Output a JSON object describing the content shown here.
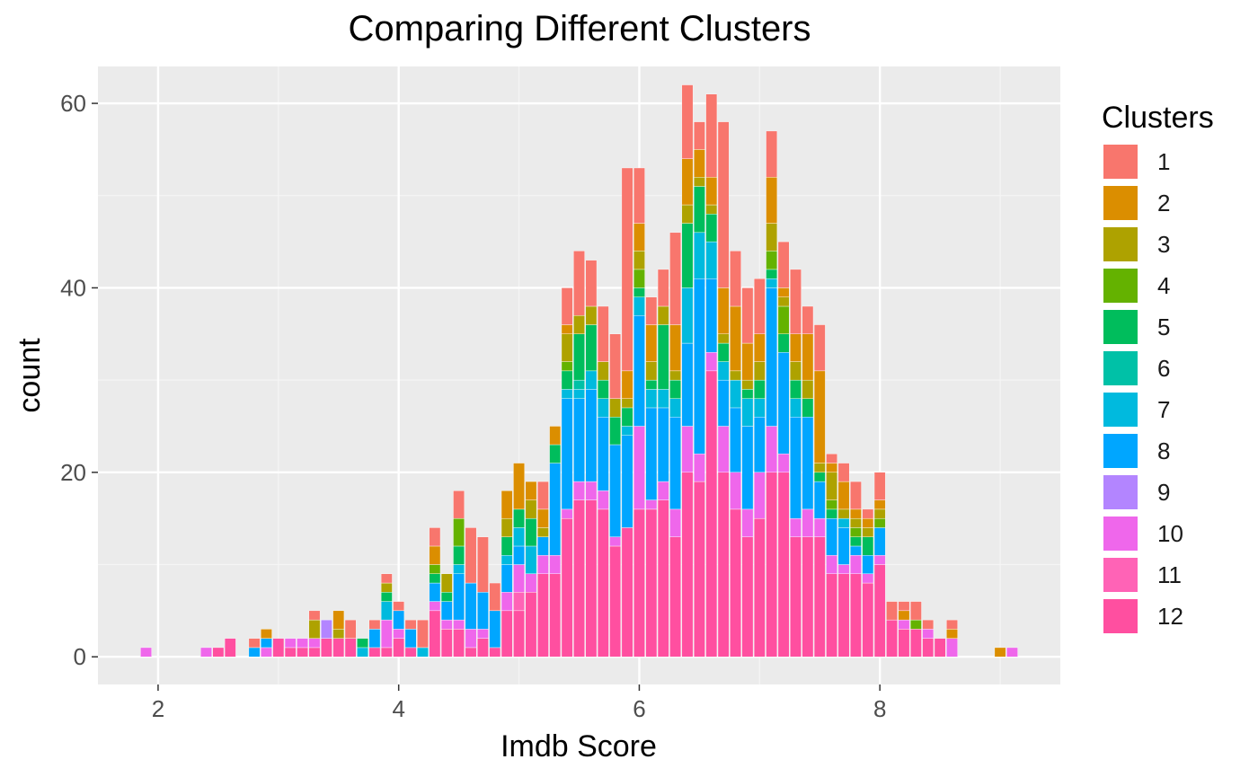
{
  "chart_data": {
    "type": "bar",
    "stacked": true,
    "title": "Comparing Different Clusters",
    "xlabel": "Imdb Score",
    "ylabel": "count",
    "xlim": [
      1.5,
      9.5
    ],
    "ylim": [
      -3,
      64
    ],
    "x_ticks": [
      2,
      4,
      6,
      8
    ],
    "y_ticks": [
      0,
      20,
      40,
      60
    ],
    "grid": true,
    "legend_position": "right",
    "legend_title": "Clusters",
    "clusters": [
      "1",
      "2",
      "3",
      "4",
      "5",
      "6",
      "7",
      "8",
      "9",
      "10",
      "11",
      "12"
    ],
    "colors": [
      "#F8766D",
      "#DB8E00",
      "#AEA200",
      "#64B200",
      "#00BD5C",
      "#00C1A7",
      "#00BADE",
      "#00A6FF",
      "#B385FF",
      "#EF67EB",
      "#FF63B6",
      "#FF4FA0"
    ],
    "bars": [
      {
        "x": 1.9,
        "counts": {
          "10": 1
        }
      },
      {
        "x": 2.4,
        "counts": {
          "10": 1
        }
      },
      {
        "x": 2.5,
        "counts": {
          "12": 1
        }
      },
      {
        "x": 2.6,
        "counts": {
          "12": 2
        }
      },
      {
        "x": 2.8,
        "counts": {
          "8": 1,
          "1": 1
        }
      },
      {
        "x": 2.9,
        "counts": {
          "10": 1,
          "8": 1,
          "2": 1
        }
      },
      {
        "x": 3.0,
        "counts": {
          "12": 2
        }
      },
      {
        "x": 3.1,
        "counts": {
          "10": 1,
          "12": 1
        }
      },
      {
        "x": 3.2,
        "counts": {
          "12": 1,
          "10": 1
        }
      },
      {
        "x": 3.3,
        "counts": {
          "12": 1,
          "10": 1,
          "3": 2,
          "1": 1
        }
      },
      {
        "x": 3.4,
        "counts": {
          "12": 2,
          "9": 2
        }
      },
      {
        "x": 3.5,
        "counts": {
          "12": 2,
          "3": 1,
          "2": 2
        }
      },
      {
        "x": 3.6,
        "counts": {
          "12": 2,
          "1": 2
        }
      },
      {
        "x": 3.7,
        "counts": {
          "7": 1,
          "5": 1
        }
      },
      {
        "x": 3.8,
        "counts": {
          "12": 1,
          "8": 2,
          "1": 1
        }
      },
      {
        "x": 3.9,
        "counts": {
          "12": 1,
          "10": 3,
          "7": 2,
          "5": 1,
          "3": 1,
          "1": 1
        }
      },
      {
        "x": 4.0,
        "counts": {
          "12": 2,
          "10": 1,
          "8": 2,
          "1": 1
        }
      },
      {
        "x": 4.1,
        "counts": {
          "12": 1,
          "8": 2,
          "1": 1
        }
      },
      {
        "x": 4.2,
        "counts": {
          "7": 1,
          "1": 3
        }
      },
      {
        "x": 4.3,
        "counts": {
          "12": 5,
          "10": 1,
          "8": 2,
          "5": 1,
          "4": 1,
          "2": 2,
          "1": 2
        }
      },
      {
        "x": 4.4,
        "counts": {
          "12": 3,
          "10": 1,
          "8": 2,
          "5": 1,
          "3": 2
        }
      },
      {
        "x": 4.5,
        "counts": {
          "12": 3,
          "10": 1,
          "8": 5,
          "7": 1,
          "5": 2,
          "4": 3,
          "1": 3
        }
      },
      {
        "x": 4.6,
        "counts": {
          "12": 1,
          "10": 2,
          "8": 5,
          "1": 6
        }
      },
      {
        "x": 4.7,
        "counts": {
          "12": 2,
          "10": 1,
          "8": 4,
          "1": 6
        }
      },
      {
        "x": 4.8,
        "counts": {
          "12": 1,
          "8": 4,
          "1": 3
        }
      },
      {
        "x": 4.9,
        "counts": {
          "12": 5,
          "10": 2,
          "8": 3,
          "7": 1,
          "5": 2,
          "3": 2,
          "2": 3
        }
      },
      {
        "x": 5.0,
        "counts": {
          "12": 5,
          "11": 2,
          "10": 3,
          "8": 2,
          "7": 2,
          "5": 2,
          "2": 5
        }
      },
      {
        "x": 5.1,
        "counts": {
          "12": 7,
          "10": 2,
          "7": 3,
          "5": 3,
          "3": 2,
          "2": 2
        }
      },
      {
        "x": 5.2,
        "counts": {
          "12": 9,
          "10": 2,
          "8": 2,
          "3": 1,
          "2": 2,
          "1": 3
        }
      },
      {
        "x": 5.3,
        "counts": {
          "12": 9,
          "10": 2,
          "8": 10,
          "5": 2,
          "2": 2
        }
      },
      {
        "x": 5.4,
        "counts": {
          "12": 15,
          "10": 1,
          "8": 12,
          "7": 1,
          "5": 2,
          "4": 1,
          "3": 3,
          "2": 1,
          "1": 4
        }
      },
      {
        "x": 5.5,
        "counts": {
          "12": 17,
          "10": 2,
          "8": 9,
          "7": 1,
          "6": 1,
          "5": 5,
          "3": 2,
          "1": 7
        }
      },
      {
        "x": 5.6,
        "counts": {
          "12": 17,
          "10": 2,
          "8": 10,
          "7": 2,
          "5": 5,
          "3": 2,
          "1": 5
        }
      },
      {
        "x": 5.7,
        "counts": {
          "12": 16,
          "10": 2,
          "8": 8,
          "7": 2,
          "5": 2,
          "3": 2,
          "1": 6
        }
      },
      {
        "x": 5.8,
        "counts": {
          "12": 12,
          "10": 1,
          "8": 10,
          "5": 3,
          "3": 2,
          "1": 7
        }
      },
      {
        "x": 5.9,
        "counts": {
          "12": 14,
          "8": 10,
          "7": 1,
          "5": 2,
          "3": 1,
          "2": 3,
          "1": 22
        }
      },
      {
        "x": 6.0,
        "counts": {
          "12": 16,
          "10": 9,
          "8": 12,
          "7": 2,
          "5": 1,
          "4": 2,
          "3": 2,
          "2": 3,
          "1": 6
        }
      },
      {
        "x": 6.1,
        "counts": {
          "12": 16,
          "10": 1,
          "8": 10,
          "7": 2,
          "5": 1,
          "3": 2,
          "2": 4,
          "1": 3
        }
      },
      {
        "x": 6.2,
        "counts": {
          "12": 17,
          "10": 2,
          "8": 8,
          "7": 2,
          "5": 7,
          "3": 2,
          "1": 4
        }
      },
      {
        "x": 6.3,
        "counts": {
          "12": 13,
          "10": 3,
          "8": 10,
          "7": 2,
          "5": 2,
          "3": 1,
          "2": 5,
          "1": 10
        }
      },
      {
        "x": 6.4,
        "counts": {
          "12": 20,
          "10": 5,
          "8": 9,
          "7": 6,
          "5": 7,
          "3": 2,
          "2": 5,
          "1": 8
        }
      },
      {
        "x": 6.5,
        "counts": {
          "12": 19,
          "10": 3,
          "8": 19,
          "7": 5,
          "5": 5,
          "3": 1,
          "2": 3,
          "1": 3
        }
      },
      {
        "x": 6.6,
        "counts": {
          "12": 31,
          "10": 2,
          "8": 8,
          "7": 4,
          "5": 3,
          "3": 1,
          "2": 3,
          "1": 9
        }
      },
      {
        "x": 6.7,
        "counts": {
          "12": 20,
          "10": 5,
          "8": 5,
          "7": 2,
          "5": 2,
          "3": 1,
          "2": 5,
          "1": 18
        }
      },
      {
        "x": 6.8,
        "counts": {
          "12": 16,
          "10": 4,
          "8": 7,
          "7": 3,
          "3": 1,
          "2": 7,
          "1": 6
        }
      },
      {
        "x": 6.9,
        "counts": {
          "12": 13,
          "10": 3,
          "8": 9,
          "7": 3,
          "5": 1,
          "3": 1,
          "2": 4,
          "1": 6
        }
      },
      {
        "x": 7.0,
        "counts": {
          "12": 15,
          "10": 5,
          "8": 6,
          "7": 2,
          "5": 2,
          "3": 2,
          "2": 3,
          "1": 6
        }
      },
      {
        "x": 7.1,
        "counts": {
          "12": 20,
          "10": 5,
          "8": 15,
          "7": 1,
          "5": 1,
          "4": 2,
          "3": 3,
          "2": 5,
          "1": 5
        }
      },
      {
        "x": 7.2,
        "counts": {
          "12": 20,
          "10": 2,
          "8": 11,
          "5": 2,
          "4": 3,
          "3": 1,
          "2": 1,
          "1": 5
        }
      },
      {
        "x": 7.3,
        "counts": {
          "12": 13,
          "10": 2,
          "8": 11,
          "7": 2,
          "5": 2,
          "3": 2,
          "2": 3,
          "1": 7
        }
      },
      {
        "x": 7.4,
        "counts": {
          "12": 13,
          "10": 3,
          "8": 10,
          "5": 2,
          "3": 2,
          "2": 5,
          "1": 3
        }
      },
      {
        "x": 7.5,
        "counts": {
          "12": 13,
          "10": 2,
          "8": 4,
          "5": 1,
          "3": 1,
          "2": 10,
          "1": 5
        }
      },
      {
        "x": 7.6,
        "counts": {
          "12": 9,
          "10": 2,
          "8": 4,
          "5": 1,
          "4": 1,
          "3": 3,
          "2": 1,
          "1": 1
        }
      },
      {
        "x": 7.7,
        "counts": {
          "12": 9,
          "10": 1,
          "8": 4,
          "7": 1,
          "3": 1,
          "2": 3,
          "1": 2
        }
      },
      {
        "x": 7.8,
        "counts": {
          "12": 9,
          "10": 2,
          "8": 1,
          "5": 1,
          "4": 1,
          "3": 1,
          "2": 1,
          "1": 3
        }
      },
      {
        "x": 7.9,
        "counts": {
          "12": 8,
          "10": 1,
          "8": 2,
          "5": 2,
          "3": 1,
          "2": 1,
          "1": 1
        }
      },
      {
        "x": 8.0,
        "counts": {
          "12": 10,
          "10": 1,
          "8": 3,
          "4": 1,
          "3": 1,
          "2": 1,
          "1": 3
        }
      },
      {
        "x": 8.1,
        "counts": {
          "12": 4,
          "1": 2
        }
      },
      {
        "x": 8.2,
        "counts": {
          "12": 3,
          "10": 1,
          "2": 1,
          "1": 1
        }
      },
      {
        "x": 8.3,
        "counts": {
          "12": 3,
          "4": 1,
          "1": 2
        }
      },
      {
        "x": 8.4,
        "counts": {
          "12": 2,
          "10": 1,
          "1": 1
        }
      },
      {
        "x": 8.5,
        "counts": {
          "12": 2
        }
      },
      {
        "x": 8.6,
        "counts": {
          "10": 2,
          "2": 1,
          "1": 1
        }
      },
      {
        "x": 9.0,
        "counts": {
          "2": 1
        }
      },
      {
        "x": 9.1,
        "counts": {
          "10": 1
        }
      }
    ]
  }
}
